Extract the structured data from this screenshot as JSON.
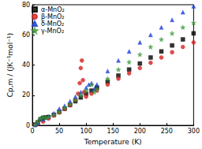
{
  "chart_data": {
    "type": "scatter",
    "x_label": "Temperature (K)",
    "y_label": "Cp,m / (JK⁻¹mol⁻¹)",
    "xlim": [
      0,
      300
    ],
    "xticks": [
      0,
      50,
      100,
      150,
      200,
      250,
      300
    ],
    "ylim": [
      0,
      80
    ],
    "yticks": [
      0,
      20,
      40,
      60,
      80
    ],
    "grid": false,
    "legend": "upper left",
    "series": [
      {
        "name": "α-MnO₂",
        "color": "#000000",
        "marker": "square",
        "x": [
          5,
          10,
          15,
          20,
          25,
          30,
          40,
          50,
          60,
          70,
          80,
          90,
          100,
          110,
          120,
          140,
          160,
          180,
          200,
          220,
          240,
          260,
          280,
          300
        ],
        "values": [
          0.5,
          2,
          4,
          5,
          5.2,
          5.5,
          7,
          9,
          11,
          13.5,
          16,
          18.5,
          21,
          23,
          25,
          29,
          33,
          37,
          41,
          45,
          49,
          53,
          57,
          61
        ]
      },
      {
        "name": "β-MnO₂",
        "color": "#d62020",
        "marker": "circle",
        "x": [
          5,
          10,
          20,
          30,
          40,
          50,
          60,
          70,
          80,
          85,
          88,
          90,
          92,
          94,
          96,
          100,
          110,
          120,
          140,
          160,
          180,
          200,
          220,
          240,
          260,
          280,
          300
        ],
        "values": [
          0.2,
          0.8,
          2.5,
          4.5,
          6.5,
          8.5,
          11,
          13.5,
          17,
          21,
          28,
          38,
          43,
          30,
          22,
          19,
          21,
          23,
          27,
          31,
          34.5,
          38,
          41.5,
          45,
          48.5,
          52,
          55
        ]
      },
      {
        "name": "δ-MnO₂",
        "color": "#1e3fd8",
        "marker": "triangle",
        "x": [
          5,
          10,
          20,
          30,
          40,
          50,
          60,
          70,
          80,
          90,
          100,
          105,
          110,
          115,
          120,
          140,
          160,
          180,
          200,
          220,
          240,
          260,
          280,
          300
        ],
        "values": [
          0.3,
          1.5,
          4,
          6,
          8,
          11,
          13,
          16,
          19,
          22,
          25,
          27,
          28,
          24,
          27,
          36,
          43,
          49,
          55,
          60,
          65,
          70,
          75,
          79
        ]
      },
      {
        "name": "γ-MnO₂",
        "color": "#3a9a3a",
        "marker": "star",
        "x": [
          5,
          10,
          15,
          20,
          25,
          30,
          40,
          50,
          60,
          70,
          80,
          90,
          100,
          110,
          115,
          120,
          140,
          160,
          180,
          200,
          220,
          240,
          260,
          280,
          300
        ],
        "values": [
          0.5,
          2.5,
          4.5,
          5.5,
          5,
          5.5,
          7,
          9,
          11.5,
          14,
          17,
          20,
          23,
          27,
          22,
          24,
          31,
          37,
          42,
          47,
          52,
          57,
          61,
          65,
          68
        ]
      }
    ]
  }
}
